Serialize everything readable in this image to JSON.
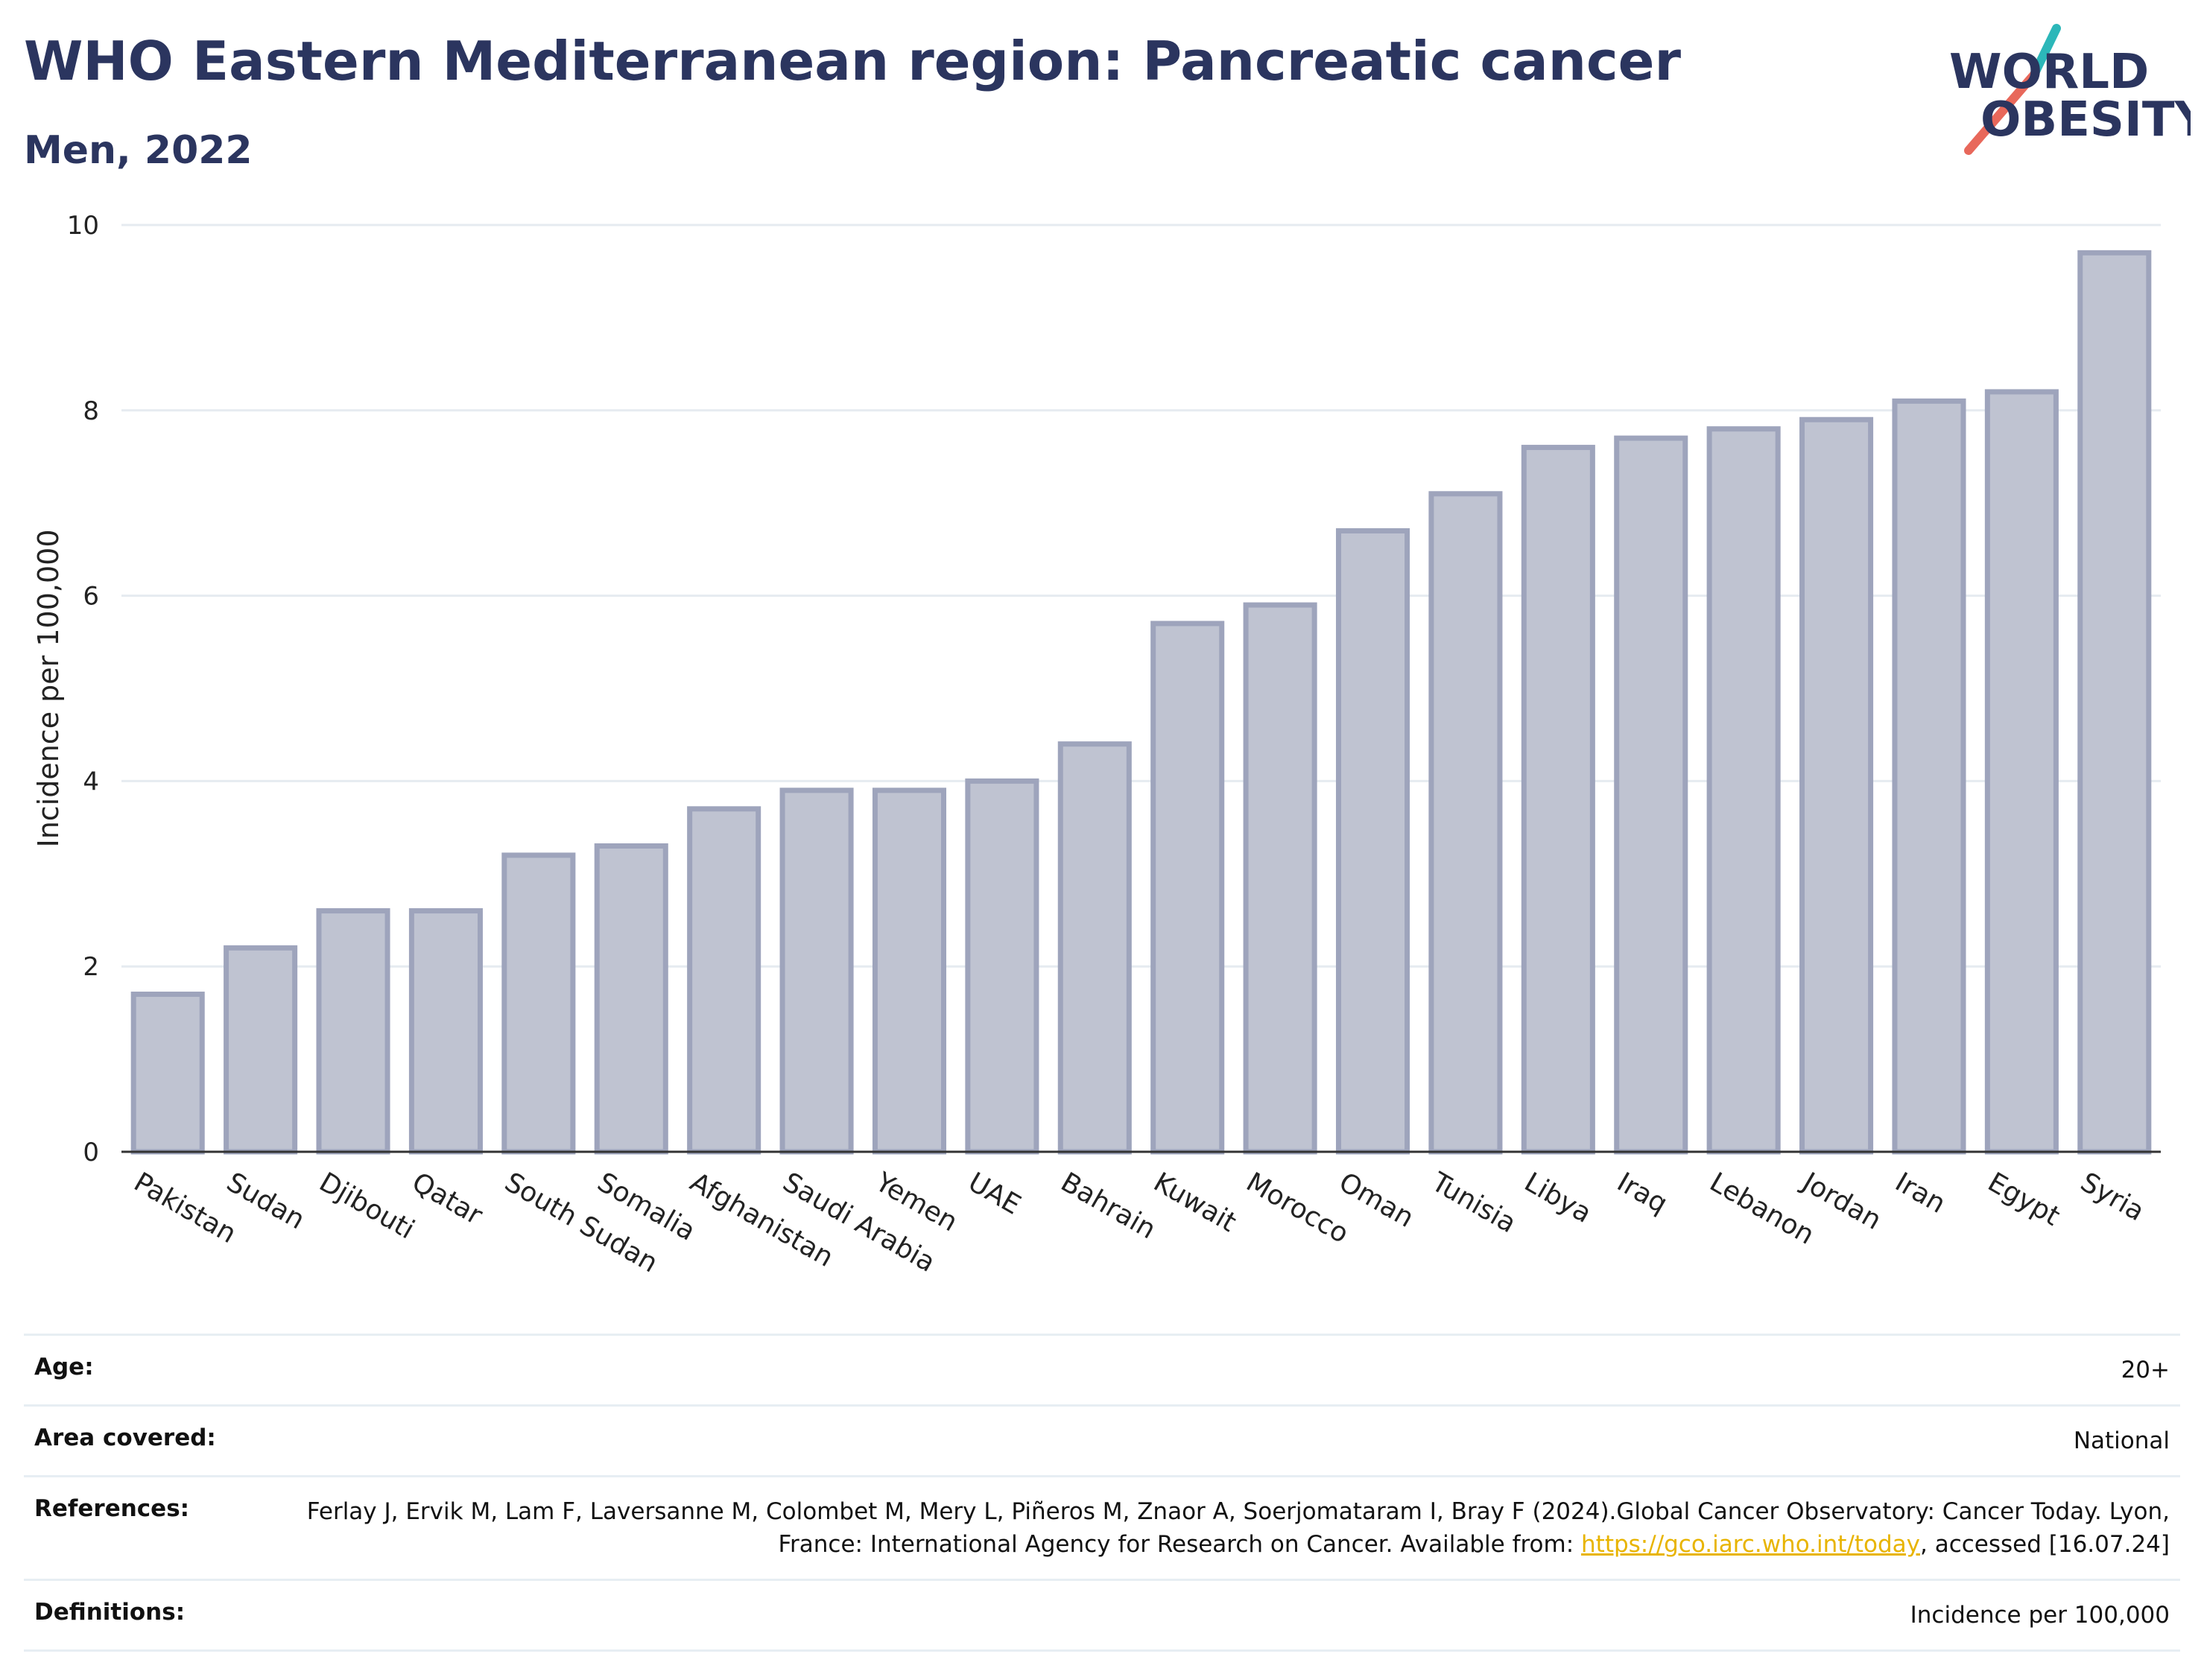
{
  "header": {
    "title": "WHO Eastern Mediterranean region: Pancreatic cancer",
    "subtitle": "Men, 2022"
  },
  "logo": {
    "line1": "WORLD",
    "line2": "OBESITY",
    "text_color": "#2b355f",
    "slash_colors": [
      "#2cb7b9",
      "#e8685b"
    ]
  },
  "chart_data": {
    "type": "bar",
    "categories": [
      "Pakistan",
      "Sudan",
      "Djibouti",
      "Qatar",
      "South Sudan",
      "Somalia",
      "Afghanistan",
      "Saudi Arabia",
      "Yemen",
      "UAE",
      "Bahrain",
      "Kuwait",
      "Morocco",
      "Oman",
      "Tunisia",
      "Libya",
      "Iraq",
      "Lebanon",
      "Jordan",
      "Iran",
      "Egypt",
      "Syria"
    ],
    "values": [
      1.7,
      2.2,
      2.6,
      2.6,
      3.2,
      3.3,
      3.7,
      3.9,
      3.9,
      4.0,
      4.4,
      5.7,
      5.9,
      6.7,
      7.1,
      7.6,
      7.7,
      7.8,
      7.9,
      8.1,
      8.2,
      9.7
    ],
    "ylabel": "Incidence per 100,000",
    "xlabel": "",
    "ylim": [
      0,
      10
    ],
    "yticks": [
      0,
      2,
      4,
      6,
      8,
      10
    ],
    "grid": true,
    "bar_fill": "#bfc3d1",
    "bar_stroke": "#9ea4bc"
  },
  "metadata": [
    {
      "label": "Age:",
      "value": "20+"
    },
    {
      "label": "Area covered:",
      "value": "National"
    },
    {
      "label": "References:",
      "value_before": "Ferlay J, Ervik M, Lam F, Laversanne M, Colombet M, Mery L, Piñeros M, Znaor A, Soerjomataram I, Bray F (2024).Global Cancer Observatory: Cancer Today. Lyon, France: International Agency for Research on Cancer. Available from: ",
      "link": "https://gco.iarc.who.int/today",
      "value_after": ", accessed [16.07.24]"
    },
    {
      "label": "Definitions:",
      "value": "Incidence per 100,000"
    }
  ]
}
